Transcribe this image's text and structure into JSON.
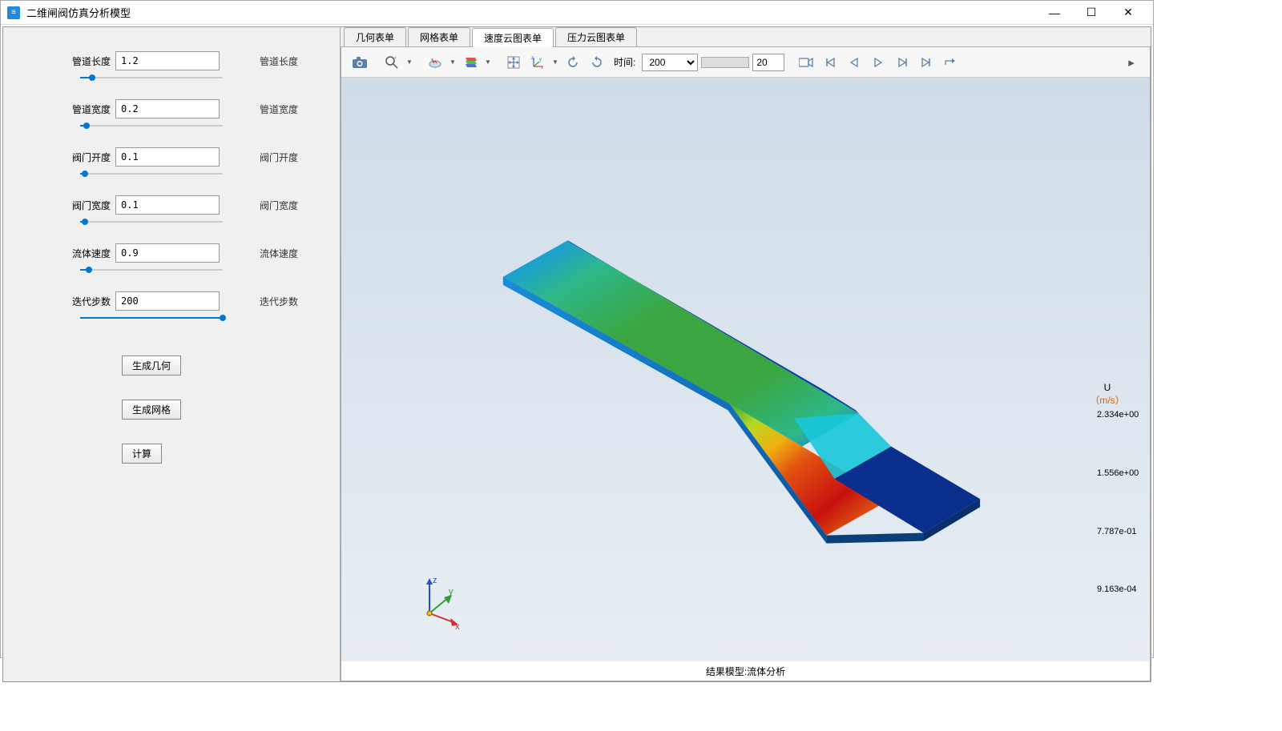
{
  "window": {
    "title": "二维闸阀仿真分析模型"
  },
  "params": [
    {
      "label": "管道长度",
      "value": "1.2",
      "side": "管道长度",
      "fill": 8
    },
    {
      "label": "管道宽度",
      "value": "0.2",
      "side": "管道宽度",
      "fill": 4
    },
    {
      "label": "阀门开度",
      "value": "0.1",
      "side": "阀门开度",
      "fill": 3
    },
    {
      "label": "阀门宽度",
      "value": "0.1",
      "side": "阀门宽度",
      "fill": 3
    },
    {
      "label": "流体速度",
      "value": "0.9",
      "side": "流体速度",
      "fill": 6
    },
    {
      "label": "迭代步数",
      "value": "200",
      "side": "迭代步数",
      "fill": 100
    }
  ],
  "buttons": {
    "gen_geom": "生成几何",
    "gen_mesh": "生成网格",
    "compute": "计算"
  },
  "tabs": [
    "几何表单",
    "网格表单",
    "速度云图表单",
    "压力云图表单"
  ],
  "active_tab": 2,
  "toolbar": {
    "time_label": "时间:",
    "time_value": "200",
    "spin_value": "20"
  },
  "colorbar": {
    "title": "U",
    "unit": "（m/s）",
    "labels": [
      "2.334e+00",
      "1.556e+00",
      "7.787e-01",
      "9.163e-04"
    ]
  },
  "axes": {
    "x": "x",
    "y": "y",
    "z": "z"
  },
  "footer": "结果模型:流体分析",
  "viz": {
    "type": "3d-contour",
    "background_gradient": [
      "#d0dce8",
      "#e8eef4"
    ],
    "geometry": "thin-rectangular-channel-with-step",
    "dominant_colors": [
      "#0b2f8c",
      "#0088dd",
      "#00cc88",
      "#33aa33",
      "#ccdd00",
      "#ff8800",
      "#dd0000"
    ],
    "value_range": [
      0.0009163,
      2.334
    ],
    "high_velocity_region": "downstream-of-gate",
    "view": "isometric"
  }
}
